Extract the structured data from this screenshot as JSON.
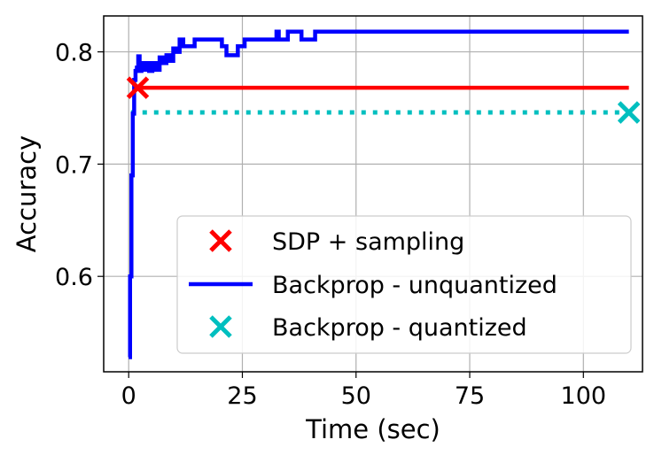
{
  "chart_data": {
    "type": "line",
    "xlabel": "Time (sec)",
    "ylabel": "Accuracy",
    "xlim": [
      -5.5,
      113
    ],
    "ylim": [
      0.515,
      0.832
    ],
    "x_ticks": [
      0,
      25,
      50,
      75,
      100
    ],
    "x_tick_labels": [
      "0",
      "25",
      "50",
      "75",
      "100"
    ],
    "y_ticks": [
      0.6,
      0.7,
      0.8
    ],
    "y_tick_labels": [
      "0.6",
      "0.7",
      "0.8"
    ],
    "grid": true,
    "legend_position": "lower-right",
    "series": [
      {
        "name": "SDP + sampling",
        "kind": "line+end-markers",
        "color": "#ff0000",
        "marker": "x",
        "x": [
          2,
          110
        ],
        "y": [
          0.768,
          0.768
        ],
        "marker_x": [
          2
        ],
        "marker_y": [
          0.768
        ]
      },
      {
        "name": "Backprop - unquantized",
        "kind": "step-line",
        "color": "#0000ff",
        "x": [
          0,
          0.3,
          0.6,
          0.9,
          1.2,
          1.5,
          1.8,
          2.1,
          2.4,
          2.8,
          3.2,
          3.8,
          4.5,
          5.2,
          6.0,
          6.8,
          7.5,
          8.3,
          9.0,
          9.8,
          10.5,
          11.2,
          12.0,
          13.0,
          14.5,
          16.0,
          17.5,
          19.0,
          20.5,
          21.5,
          22.5,
          24.0,
          25.5,
          27.0,
          29.0,
          31.0,
          32.5,
          33.0,
          33.5,
          35.0,
          36.5,
          38.0,
          39.5,
          41.0,
          42.5,
          44.0,
          60.0,
          110.0
        ],
        "y": [
          0.528,
          0.6,
          0.69,
          0.745,
          0.775,
          0.783,
          0.786,
          0.796,
          0.783,
          0.79,
          0.784,
          0.79,
          0.783,
          0.79,
          0.784,
          0.795,
          0.79,
          0.797,
          0.792,
          0.803,
          0.8,
          0.811,
          0.805,
          0.805,
          0.811,
          0.811,
          0.811,
          0.811,
          0.805,
          0.797,
          0.797,
          0.805,
          0.811,
          0.811,
          0.811,
          0.811,
          0.818,
          0.811,
          0.811,
          0.818,
          0.818,
          0.811,
          0.811,
          0.818,
          0.818,
          0.818,
          0.818,
          0.818
        ]
      },
      {
        "name": "Backprop - quantized",
        "kind": "dotted-line+end-markers",
        "color": "#00bfbf",
        "marker": "x",
        "x": [
          0.5,
          110
        ],
        "y": [
          0.746,
          0.746
        ],
        "marker_x": [
          110
        ],
        "marker_y": [
          0.746
        ]
      }
    ],
    "legend": [
      {
        "label": "SDP + sampling",
        "symbol": "x",
        "color": "#ff0000"
      },
      {
        "label": "Backprop - unquantized",
        "symbol": "line",
        "color": "#0000ff"
      },
      {
        "label": "Backprop - quantized",
        "symbol": "x",
        "color": "#00bfbf"
      }
    ]
  }
}
